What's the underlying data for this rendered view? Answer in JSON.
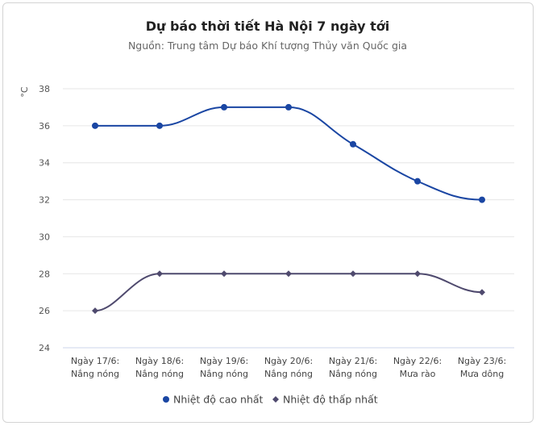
{
  "chart_data": {
    "type": "line",
    "title": "Dự báo thời tiết Hà Nội 7 ngày tới",
    "subtitle": "Nguồn: Trung tâm Dự báo Khí tượng Thủy văn Quốc gia",
    "ylabel": "°C",
    "ylim": [
      24,
      38
    ],
    "yticks": [
      24,
      26,
      28,
      30,
      32,
      34,
      36,
      38
    ],
    "grid": true,
    "legend_position": "bottom",
    "categories": [
      [
        "Ngày 17/6:",
        "Nắng nóng"
      ],
      [
        "Ngày 18/6:",
        "Nắng nóng"
      ],
      [
        "Ngày 19/6:",
        "Nắng nóng"
      ],
      [
        "Ngày 20/6:",
        "Nắng nóng"
      ],
      [
        "Ngày 21/6:",
        "Nắng nóng"
      ],
      [
        "Ngày 22/6:",
        "Mưa rào"
      ],
      [
        "Ngày 23/6:",
        "Mưa dông"
      ]
    ],
    "series": [
      {
        "name": "Nhiệt độ cao nhất",
        "values": [
          36,
          36,
          37,
          37,
          35,
          33,
          32
        ],
        "color": "#1a46a3",
        "marker": "circle"
      },
      {
        "name": "Nhiệt độ thấp nhất",
        "values": [
          26,
          28,
          28,
          28,
          28,
          28,
          27
        ],
        "color": "#4f4a6e",
        "marker": "diamond"
      }
    ]
  }
}
